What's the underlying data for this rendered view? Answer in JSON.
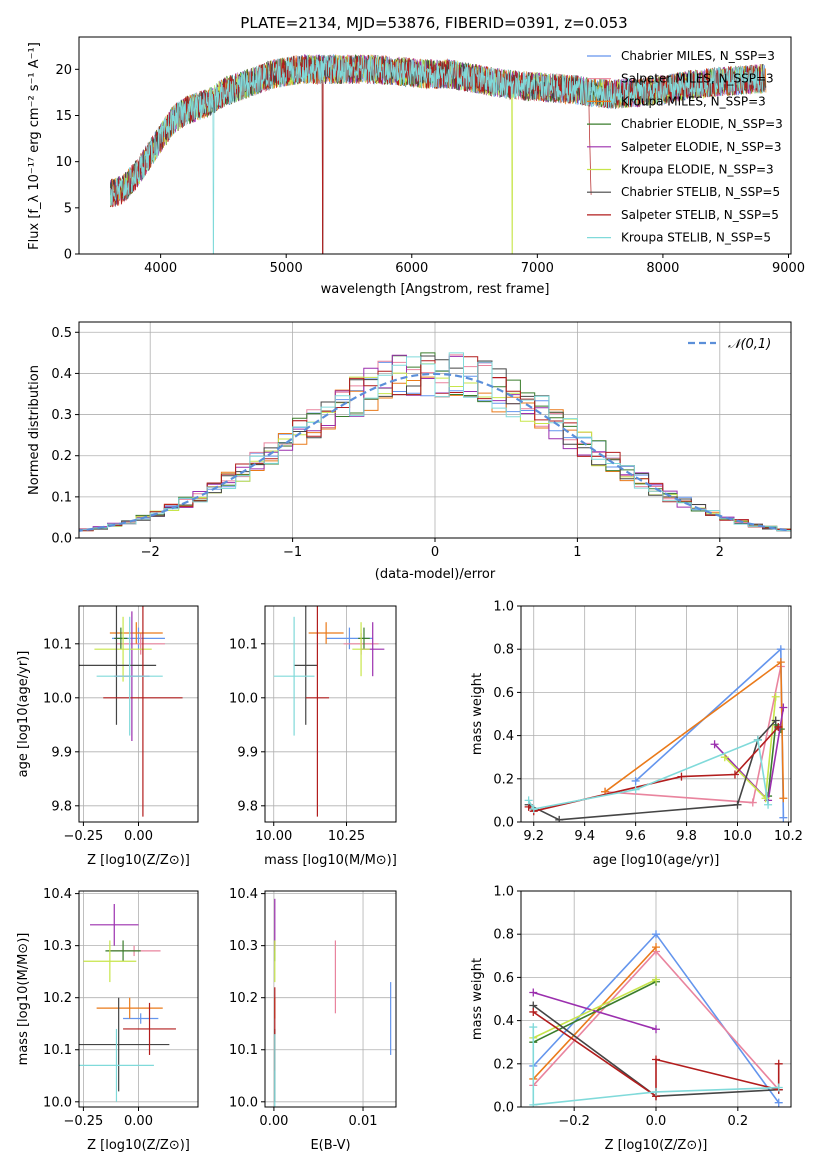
{
  "title": "PLATE=2134, MJD=53876, FIBERID=0391, z=0.053",
  "colors": {
    "chabrier_miles": "#6495ed",
    "salpeter_miles": "#e9849e",
    "kroupa_miles": "#ea7a1a",
    "chabrier_elodie": "#3a7d2c",
    "salpeter_elodie": "#9b2fae",
    "kroupa_elodie": "#c7e54a",
    "chabrier_stelib": "#454545",
    "salpeter_stelib": "#b21d1d",
    "kroupa_stelib": "#80dada"
  },
  "chart_data": [
    {
      "type": "line",
      "id": "spectrum",
      "xlabel": "wavelength [Angstrom, rest frame]",
      "ylabel": "Flux [f_λ 10⁻¹⁷ erg cm⁻² s⁻¹ A⁻¹]",
      "xlim": [
        3350,
        9020
      ],
      "ylim": [
        0,
        23.5
      ],
      "xticks": [
        "4000",
        "5000",
        "6000",
        "7000",
        "8000",
        "9000"
      ],
      "yticks": [
        "0",
        "5",
        "10",
        "15",
        "20"
      ],
      "grid": false,
      "legend_position": "right",
      "continuum": {
        "x": [
          3600,
          3700,
          3800,
          3900,
          4000,
          4100,
          4200,
          4300,
          4400,
          4500,
          4700,
          4900,
          5100,
          5300,
          5500,
          5700,
          5900,
          6100,
          6300,
          6500,
          6700,
          6900,
          7100,
          7300,
          7420,
          7600,
          7800,
          8000,
          8200,
          8400,
          8600,
          8800
        ],
        "y": [
          6.5,
          7.0,
          8.5,
          10.5,
          12.5,
          14.5,
          15.5,
          16.0,
          16.5,
          17.5,
          18.5,
          19.5,
          20.0,
          20.0,
          20.0,
          20.0,
          19.8,
          19.5,
          19.5,
          19.0,
          18.5,
          18.2,
          18.0,
          17.8,
          17.5,
          17.3,
          17.5,
          17.8,
          18.3,
          18.6,
          18.8,
          19.0
        ]
      },
      "series": [
        {
          "name": "Chabrier MILES, N_SSP=3",
          "color_key": "chabrier_miles"
        },
        {
          "name": "Salpeter MILES, N_SSP=3",
          "color_key": "salpeter_miles"
        },
        {
          "name": "Kroupa MILES, N_SSP=3",
          "color_key": "kroupa_miles"
        },
        {
          "name": "Chabrier ELODIE, N_SSP=3",
          "color_key": "chabrier_elodie"
        },
        {
          "name": "Salpeter ELODIE, N_SSP=3",
          "color_key": "salpeter_elodie"
        },
        {
          "name": "Kroupa ELODIE, N_SSP=3",
          "color_key": "kroupa_elodie"
        },
        {
          "name": "Chabrier STELIB, N_SSP=5",
          "color_key": "chabrier_stelib"
        },
        {
          "name": "Salpeter STELIB, N_SSP=5",
          "color_key": "salpeter_stelib"
        },
        {
          "name": "Kroupa STELIB, N_SSP=5",
          "color_key": "kroupa_stelib"
        }
      ]
    },
    {
      "type": "line",
      "id": "residuals",
      "xlabel": "(data-model)/error",
      "ylabel": "Normed distribution",
      "xlim": [
        -2.5,
        2.5
      ],
      "ylim": [
        0,
        0.525
      ],
      "xticks": [
        "−2",
        "−1",
        "0",
        "1",
        "2"
      ],
      "yticks": [
        "0.0",
        "0.1",
        "0.2",
        "0.3",
        "0.4",
        "0.5"
      ],
      "grid": true,
      "legend_position": "top-right",
      "legend": [
        "𝒩(0,1)"
      ],
      "bin_width": 0.1
    },
    {
      "type": "scatter",
      "id": "age_vs_Z",
      "xlabel": "Z [log10(Z/Z⊙)]",
      "ylabel": "age [log10(age/yr)]",
      "xlim": [
        -0.27,
        0.27
      ],
      "ylim": [
        9.77,
        10.17
      ],
      "xticks": [
        "−0.25",
        "0.00"
      ],
      "yticks": [
        "9.8",
        "9.9",
        "10.0",
        "10.1"
      ],
      "grid": true,
      "points": [
        {
          "color_key": "chabrier_miles",
          "x": 0.0,
          "xerr": 0.12,
          "y": 10.11,
          "yerr": 0.02
        },
        {
          "color_key": "salpeter_miles",
          "x": 0.01,
          "xerr": 0.11,
          "y": 10.1,
          "yerr": 0.02
        },
        {
          "color_key": "kroupa_miles",
          "x": -0.01,
          "xerr": 0.12,
          "y": 10.12,
          "yerr": 0.02
        },
        {
          "color_key": "chabrier_elodie",
          "x": -0.08,
          "xerr": 0.03,
          "y": 10.11,
          "yerr": 0.02
        },
        {
          "color_key": "salpeter_elodie",
          "x": -0.03,
          "xerr": 0.08,
          "y": 10.04,
          "yerr": 0.12
        },
        {
          "color_key": "kroupa_elodie",
          "x": -0.07,
          "xerr": 0.13,
          "y": 10.09,
          "yerr": 0.06
        },
        {
          "color_key": "chabrier_stelib",
          "x": -0.1,
          "xerr": 0.18,
          "y": 10.06,
          "yerr": 0.11
        },
        {
          "color_key": "salpeter_stelib",
          "x": 0.02,
          "xerr": 0.18,
          "y": 10.0,
          "yerr": 0.22
        },
        {
          "color_key": "kroupa_stelib",
          "x": -0.04,
          "xerr": 0.15,
          "y": 10.04,
          "yerr": 0.11
        }
      ]
    },
    {
      "type": "scatter",
      "id": "age_vs_mass",
      "xlabel": "mass [log10(M/M⊙)]",
      "ylabel": "",
      "xlim": [
        9.97,
        10.42
      ],
      "ylim": [
        9.77,
        10.17
      ],
      "xticks": [
        "10.00",
        "10.25"
      ],
      "yticks": [
        "9.8",
        "9.9",
        "10.0",
        "10.1"
      ],
      "grid": true,
      "points": [
        {
          "color_key": "chabrier_miles",
          "x": 10.26,
          "xerr": 0.08,
          "y": 10.11,
          "yerr": 0.02
        },
        {
          "color_key": "salpeter_miles",
          "x": 10.3,
          "xerr": 0.06,
          "y": 10.1,
          "yerr": 0.02
        },
        {
          "color_key": "kroupa_miles",
          "x": 10.18,
          "xerr": 0.06,
          "y": 10.12,
          "yerr": 0.02
        },
        {
          "color_key": "chabrier_elodie",
          "x": 10.31,
          "xerr": 0.02,
          "y": 10.11,
          "yerr": 0.02
        },
        {
          "color_key": "salpeter_elodie",
          "x": 10.34,
          "xerr": 0.04,
          "y": 10.09,
          "yerr": 0.05
        },
        {
          "color_key": "kroupa_elodie",
          "x": 10.3,
          "xerr": 0.03,
          "y": 10.09,
          "yerr": 0.05
        },
        {
          "color_key": "chabrier_stelib",
          "x": 10.11,
          "xerr": 0.04,
          "y": 10.06,
          "yerr": 0.11
        },
        {
          "color_key": "salpeter_stelib",
          "x": 10.15,
          "xerr": 0.04,
          "y": 10.0,
          "yerr": 0.22
        },
        {
          "color_key": "kroupa_stelib",
          "x": 10.07,
          "xerr": 0.07,
          "y": 10.04,
          "yerr": 0.11
        }
      ]
    },
    {
      "type": "line",
      "id": "weight_vs_age",
      "xlabel": "age [log10(age/yr)]",
      "ylabel": "mass weight",
      "xlim": [
        9.15,
        10.21
      ],
      "ylim": [
        0,
        1.0
      ],
      "xticks": [
        "9.2",
        "9.4",
        "9.6",
        "9.8",
        "10.0",
        "10.2"
      ],
      "yticks": [
        "0.0",
        "0.2",
        "0.4",
        "0.6",
        "0.8",
        "1.0"
      ],
      "grid": true,
      "series": [
        {
          "color_key": "chabrier_miles",
          "x": [
            9.6,
            10.17,
            10.18
          ],
          "y": [
            0.19,
            0.8,
            0.02
          ]
        },
        {
          "color_key": "salpeter_miles",
          "x": [
            9.48,
            10.06,
            10.17
          ],
          "y": [
            0.14,
            0.09,
            0.72
          ]
        },
        {
          "color_key": "kroupa_miles",
          "x": [
            9.48,
            10.17,
            10.18
          ],
          "y": [
            0.14,
            0.74,
            0.11
          ]
        },
        {
          "color_key": "chabrier_elodie",
          "x": [
            10.12,
            10.15,
            10.17
          ],
          "y": [
            0.12,
            0.45,
            0.43
          ]
        },
        {
          "color_key": "salpeter_elodie",
          "x": [
            9.91,
            10.12,
            10.18
          ],
          "y": [
            0.36,
            0.1,
            0.53
          ]
        },
        {
          "color_key": "kroupa_elodie",
          "x": [
            9.95,
            10.11,
            10.15
          ],
          "y": [
            0.3,
            0.11,
            0.58
          ]
        },
        {
          "color_key": "chabrier_stelib",
          "x": [
            9.18,
            9.3,
            10.0,
            10.08,
            10.15
          ],
          "y": [
            0.08,
            0.01,
            0.08,
            0.38,
            0.47
          ]
        },
        {
          "color_key": "salpeter_stelib",
          "x": [
            9.18,
            9.2,
            9.78,
            9.99,
            10.16
          ],
          "y": [
            0.07,
            0.05,
            0.21,
            0.22,
            0.44
          ]
        },
        {
          "color_key": "kroupa_stelib",
          "x": [
            9.18,
            9.2,
            9.6,
            10.08,
            10.12
          ],
          "y": [
            0.1,
            0.06,
            0.15,
            0.38,
            0.08
          ]
        }
      ]
    },
    {
      "type": "scatter",
      "id": "mass_vs_Z",
      "xlabel": "Z [log10(Z/Z⊙)]",
      "ylabel": "mass [log10(M/M⊙)]",
      "xlim": [
        -0.27,
        0.27
      ],
      "ylim": [
        9.99,
        10.405
      ],
      "xticks": [
        "−0.25",
        "0.00"
      ],
      "yticks": [
        "10.0",
        "10.1",
        "10.2",
        "10.3",
        "10.4"
      ],
      "grid": true,
      "points": [
        {
          "color_key": "chabrier_miles",
          "x": 0.01,
          "xerr": 0.08,
          "y": 10.16,
          "yerr": 0.01
        },
        {
          "color_key": "salpeter_miles",
          "x": -0.02,
          "xerr": 0.12,
          "y": 10.29,
          "yerr": 0.01
        },
        {
          "color_key": "kroupa_miles",
          "x": -0.04,
          "xerr": 0.15,
          "y": 10.18,
          "yerr": 0.02
        },
        {
          "color_key": "chabrier_elodie",
          "x": -0.07,
          "xerr": 0.08,
          "y": 10.29,
          "yerr": 0.02
        },
        {
          "color_key": "salpeter_elodie",
          "x": -0.11,
          "xerr": 0.11,
          "y": 10.34,
          "yerr": 0.04
        },
        {
          "color_key": "kroupa_elodie",
          "x": -0.13,
          "xerr": 0.12,
          "y": 10.27,
          "yerr": 0.04
        },
        {
          "color_key": "chabrier_stelib",
          "x": -0.09,
          "xerr": 0.23,
          "y": 10.11,
          "yerr": 0.09
        },
        {
          "color_key": "salpeter_stelib",
          "x": 0.05,
          "xerr": 0.12,
          "y": 10.14,
          "yerr": 0.05
        },
        {
          "color_key": "kroupa_stelib",
          "x": -0.1,
          "xerr": 0.17,
          "y": 10.07,
          "yerr": 0.07
        }
      ]
    },
    {
      "type": "scatter",
      "id": "mass_vs_ebv",
      "xlabel": "E(B-V)",
      "ylabel": "",
      "xlim": [
        -0.001,
        0.0137
      ],
      "ylim": [
        9.99,
        10.405
      ],
      "xticks": [
        "0.00",
        "0.01"
      ],
      "yticks": [
        "10.0",
        "10.1",
        "10.2",
        "10.3",
        "10.4"
      ],
      "grid": true,
      "points": [
        {
          "color_key": "chabrier_miles",
          "x": 0.0131,
          "y": 10.16,
          "yerr": 0.07
        },
        {
          "color_key": "salpeter_miles",
          "x": 0.0069,
          "y": 10.24,
          "yerr": 0.07
        },
        {
          "color_key": "kroupa_miles",
          "x": 0.0001,
          "y": 10.18,
          "yerr": 0.02
        },
        {
          "color_key": "chabrier_elodie",
          "x": 0.0001,
          "y": 10.29,
          "yerr": 0.02
        },
        {
          "color_key": "salpeter_elodie",
          "x": 0.0001,
          "y": 10.34,
          "yerr": 0.05
        },
        {
          "color_key": "kroupa_elodie",
          "x": 0.0001,
          "y": 10.27,
          "yerr": 0.04
        },
        {
          "color_key": "chabrier_stelib",
          "x": 0.0001,
          "y": 10.07,
          "yerr": 0.07
        },
        {
          "color_key": "salpeter_stelib",
          "x": 0.0001,
          "y": 10.14,
          "yerr": 0.08
        },
        {
          "color_key": "kroupa_stelib",
          "x": 0.0001,
          "y": 10.06,
          "yerr": 0.07
        }
      ]
    },
    {
      "type": "line",
      "id": "weight_vs_Z",
      "xlabel": "Z [log10(Z/Z⊙)]",
      "ylabel": "mass weight",
      "xlim": [
        -0.33,
        0.33
      ],
      "ylim": [
        0,
        1.0
      ],
      "xticks": [
        "−0.2",
        "0.0",
        "0.2"
      ],
      "yticks": [
        "0.0",
        "0.2",
        "0.4",
        "0.6",
        "0.8",
        "1.0"
      ],
      "grid": true,
      "series": [
        {
          "color_key": "chabrier_miles",
          "x": [
            -0.3,
            0.0,
            0.3
          ],
          "y": [
            0.19,
            0.8,
            0.02
          ]
        },
        {
          "color_key": "salpeter_miles",
          "x": [
            -0.3,
            0.0,
            0.3
          ],
          "y": [
            0.1,
            0.72,
            0.08
          ]
        },
        {
          "color_key": "kroupa_miles",
          "x": [
            -0.3,
            0.0
          ],
          "y": [
            0.13,
            0.74
          ]
        },
        {
          "color_key": "chabrier_elodie",
          "x": [
            -0.3,
            0.0
          ],
          "y": [
            0.3,
            0.58
          ]
        },
        {
          "color_key": "salpeter_elodie",
          "x": [
            -0.3,
            0.0
          ],
          "y": [
            0.53,
            0.36
          ]
        },
        {
          "color_key": "kroupa_elodie",
          "x": [
            -0.3,
            0.0
          ],
          "y": [
            0.32,
            0.59
          ]
        },
        {
          "color_key": "chabrier_stelib",
          "x": [
            -0.3,
            0.0,
            0.3
          ],
          "y": [
            0.47,
            0.05,
            0.08
          ]
        },
        {
          "color_key": "salpeter_stelib",
          "x": [
            -0.3,
            0.0,
            0.0,
            0.3,
            0.3
          ],
          "y": [
            0.44,
            0.05,
            0.22,
            0.08,
            0.2
          ]
        },
        {
          "color_key": "kroupa_stelib",
          "x": [
            -0.3,
            -0.3,
            0.0,
            0.3
          ],
          "y": [
            0.37,
            0.01,
            0.07,
            0.09
          ]
        }
      ]
    }
  ]
}
